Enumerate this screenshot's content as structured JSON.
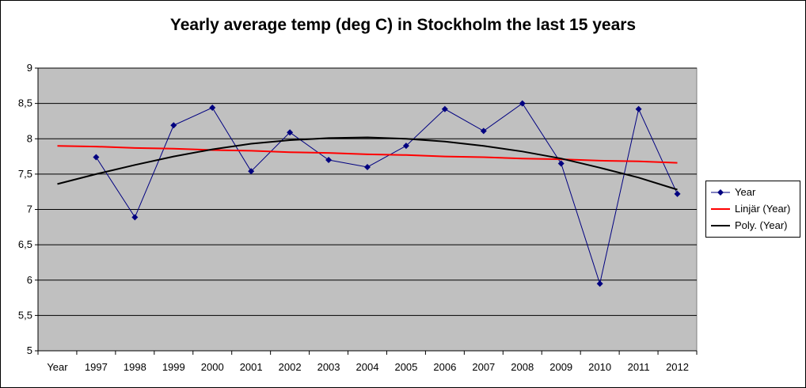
{
  "chart_data": {
    "type": "line",
    "title": "Yearly average temp (deg C) in Stockholm the last 15 years",
    "xlabel": "",
    "ylabel": "",
    "categories": [
      "Year",
      "1997",
      "1998",
      "1999",
      "2000",
      "2001",
      "2002",
      "2003",
      "2004",
      "2005",
      "2006",
      "2007",
      "2008",
      "2009",
      "2010",
      "2011",
      "2012"
    ],
    "y_tick_labels": [
      "5",
      "5,5",
      "6",
      "6,5",
      "7",
      "7,5",
      "8",
      "8,5",
      "9"
    ],
    "ylim": [
      5,
      9
    ],
    "grid": "horizontal",
    "legend_position": "right",
    "plot_background": "#c0c0c0",
    "series": [
      {
        "name": "Year",
        "style": "line-with-markers",
        "color": "#000080",
        "values": [
          null,
          7.74,
          6.89,
          8.19,
          8.44,
          7.54,
          8.09,
          7.7,
          7.6,
          7.9,
          8.42,
          8.11,
          8.5,
          7.65,
          5.95,
          8.42,
          7.22
        ]
      },
      {
        "name": "Linjär (Year)",
        "style": "trendline",
        "color": "#ff0000",
        "values": [
          7.9,
          7.89,
          7.87,
          7.86,
          7.84,
          7.83,
          7.81,
          7.8,
          7.78,
          7.77,
          7.75,
          7.74,
          7.72,
          7.71,
          7.69,
          7.68,
          7.66
        ]
      },
      {
        "name": "Poly. (Year)",
        "style": "trendline",
        "color": "#000000",
        "values": [
          7.36,
          7.5,
          7.63,
          7.75,
          7.85,
          7.93,
          7.98,
          8.01,
          8.02,
          8.0,
          7.96,
          7.9,
          7.82,
          7.72,
          7.59,
          7.45,
          7.28
        ]
      }
    ]
  }
}
